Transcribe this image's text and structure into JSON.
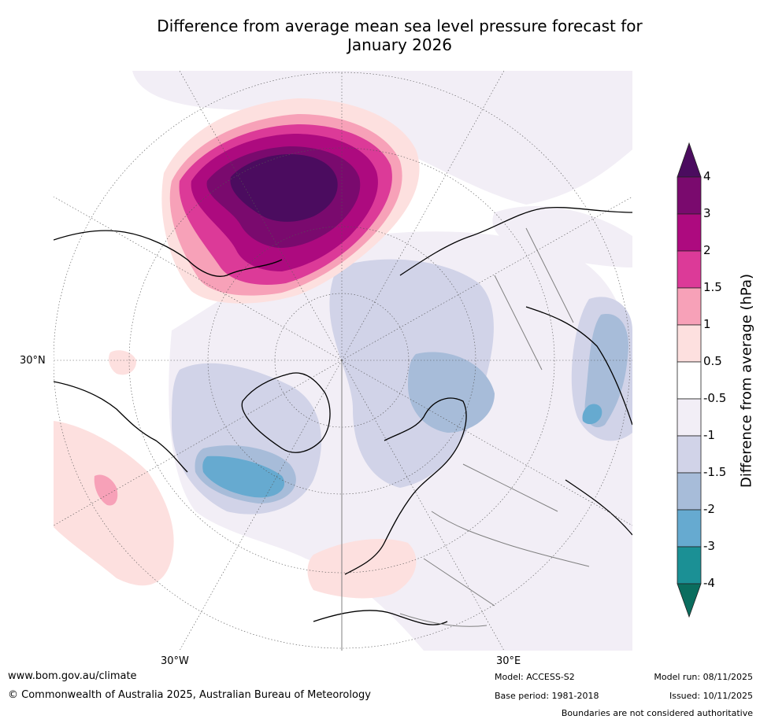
{
  "title_line1": "Difference from average mean sea level pressure forecast for",
  "title_line2": "January 2026",
  "map": {
    "axis_labels": {
      "left": "30°N",
      "bottom_left": "30°W",
      "bottom_right": "30°E"
    }
  },
  "colorbar": {
    "label": "Difference from average (hPa)",
    "ticks": [
      "4",
      "3",
      "2",
      "1.5",
      "1",
      "0.5",
      "-0.5",
      "-1",
      "-1.5",
      "-2",
      "-3",
      "-4"
    ],
    "colors": [
      "#4b0c5f",
      "#7a0a6e",
      "#ad0a7f",
      "#dc3a98",
      "#f7a1b8",
      "#fde0df",
      "#ffffff",
      "#f2eef6",
      "#d1d3e8",
      "#a7bcd9",
      "#66aad0",
      "#1b9095",
      "#0a6d5e"
    ]
  },
  "footer": {
    "website": "www.bom.gov.au/climate",
    "copyright": "© Commonwealth of Australia 2025, Australian Bureau of Meteorology",
    "model": "Model: ACCESS-S2",
    "base_period": "Base period: 1981-2018",
    "model_run": "Model run: 08/11/2025",
    "issued": "Issued: 10/11/2025",
    "disclaimer": "Boundaries are not considered authoritative"
  }
}
